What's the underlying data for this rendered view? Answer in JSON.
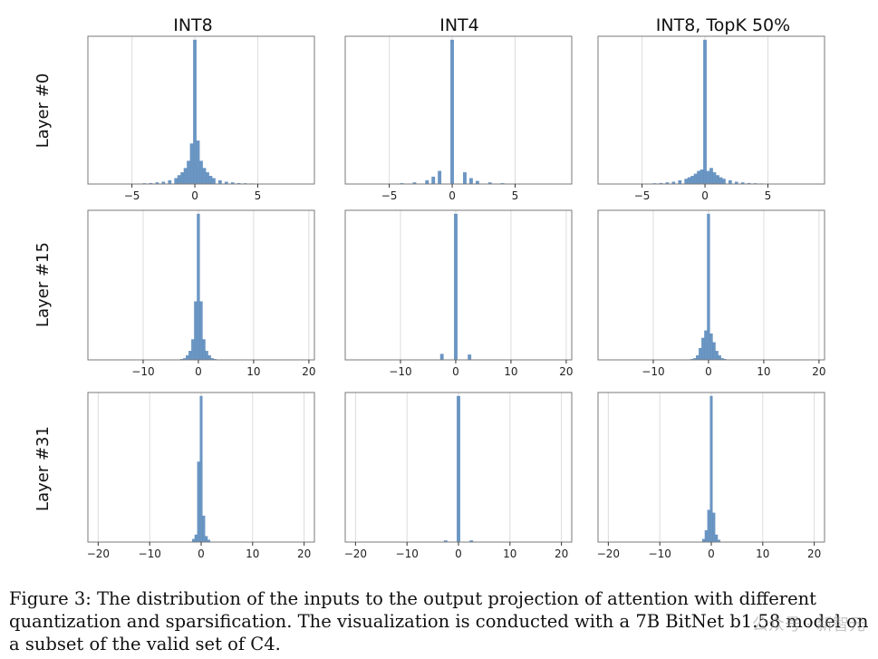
{
  "figure": {
    "caption": "Figure 3: The distribution of the inputs to the output projection of attention with different quantization and sparsification. The visualization is conducted with a 7B BitNet b1.58 model on a subset of the valid set of C4.",
    "watermark": "公众号 · 新智元",
    "bar_color": "#6a96c4",
    "columns": [
      "INT8",
      "INT4",
      "INT8, TopK 50%"
    ],
    "rows": [
      "Layer #0",
      "Layer #15",
      "Layer #31"
    ]
  },
  "chart_data": [
    {
      "type": "bar",
      "panel": "Layer #0 / INT8",
      "title": "INT8",
      "ylabel": "Layer #0",
      "xlim": [
        -8.5,
        9.5
      ],
      "xticks": [
        -5,
        0,
        5
      ],
      "xtick_labels": [
        "−5",
        "0",
        "5"
      ],
      "grid": true,
      "x": [
        -4.5,
        -4,
        -3.5,
        -3,
        -2.5,
        -2,
        -1.5,
        -1.25,
        -1,
        -0.75,
        -0.5,
        -0.25,
        0,
        0.25,
        0.5,
        0.75,
        1,
        1.25,
        1.5,
        2,
        2.5,
        3,
        3.5,
        4,
        4.5,
        5,
        6
      ],
      "values": [
        0.2,
        0.4,
        0.6,
        1,
        1.5,
        2.5,
        4,
        6,
        8,
        11,
        16,
        28,
        100,
        30,
        16,
        11,
        8,
        5.5,
        4,
        2.5,
        1.5,
        1,
        0.6,
        0.4,
        0.3,
        0.2,
        0.1
      ]
    },
    {
      "type": "bar",
      "panel": "Layer #0 / INT4",
      "title": "INT4",
      "xlim": [
        -8.5,
        9.5
      ],
      "xticks": [
        -5,
        0,
        5
      ],
      "xtick_labels": [
        "−5",
        "0",
        "5"
      ],
      "grid": true,
      "x": [
        -4,
        -3,
        -2,
        -1.5,
        -1,
        0,
        1,
        1.5,
        2,
        3,
        4
      ],
      "values": [
        0.5,
        1,
        2.5,
        5,
        9,
        100,
        8,
        4,
        2,
        1,
        0.5
      ]
    },
    {
      "type": "bar",
      "panel": "Layer #0 / INT8, TopK 50%",
      "title": "INT8, TopK 50%",
      "xlim": [
        -8.5,
        9.5
      ],
      "xticks": [
        -5,
        0,
        5
      ],
      "xtick_labels": [
        "−5",
        "0",
        "5"
      ],
      "grid": true,
      "x": [
        -4.5,
        -4,
        -3.5,
        -3,
        -2.5,
        -2,
        -1.5,
        -1.25,
        -1,
        -0.75,
        -0.5,
        -0.25,
        0,
        0.25,
        0.5,
        0.75,
        1,
        1.25,
        1.5,
        2,
        2.5,
        3,
        3.5,
        4,
        4.5,
        5,
        6
      ],
      "values": [
        0.2,
        0.4,
        0.6,
        1,
        1.5,
        2.5,
        3.5,
        4.5,
        5.5,
        7,
        9,
        10,
        100,
        9,
        11,
        8,
        6,
        4.5,
        3.5,
        2.5,
        1.5,
        1,
        0.6,
        0.4,
        0.3,
        0.2,
        0.1
      ]
    },
    {
      "type": "bar",
      "panel": "Layer #15 / INT8",
      "ylabel": "Layer #15",
      "xlim": [
        -20,
        21
      ],
      "xticks": [
        -10,
        0,
        10,
        20
      ],
      "xtick_labels": [
        "−10",
        "0",
        "10",
        "20"
      ],
      "grid": true,
      "x": [
        -3,
        -2.5,
        -2,
        -1.5,
        -1,
        -0.5,
        0,
        0.5,
        1,
        1.5,
        2,
        2.5,
        3
      ],
      "values": [
        0.5,
        1,
        3,
        6,
        14,
        40,
        100,
        40,
        14,
        6,
        3,
        1,
        0.5
      ]
    },
    {
      "type": "bar",
      "panel": "Layer #15 / INT4",
      "xlim": [
        -20,
        21
      ],
      "xticks": [
        -10,
        0,
        10,
        20
      ],
      "xtick_labels": [
        "−10",
        "0",
        "10",
        "20"
      ],
      "grid": true,
      "x": [
        -2.5,
        0,
        2.5
      ],
      "values": [
        4,
        100,
        3.5
      ]
    },
    {
      "type": "bar",
      "panel": "Layer #15 / INT8, TopK 50%",
      "xlim": [
        -20,
        21
      ],
      "xticks": [
        -10,
        0,
        10,
        20
      ],
      "xtick_labels": [
        "−10",
        "0",
        "10",
        "20"
      ],
      "grid": true,
      "x": [
        -3,
        -2.5,
        -2,
        -1.5,
        -1,
        -0.5,
        0,
        0.5,
        1,
        1.5,
        2,
        2.5,
        3
      ],
      "values": [
        0.5,
        1,
        3,
        8,
        15,
        20,
        100,
        18,
        12,
        6,
        3,
        1,
        0.5
      ]
    },
    {
      "type": "bar",
      "panel": "Layer #31 / INT8",
      "ylabel": "Layer #31",
      "xlim": [
        -22,
        22
      ],
      "xticks": [
        -20,
        -10,
        0,
        10,
        20
      ],
      "xtick_labels": [
        "−20",
        "−10",
        "0",
        "10",
        "20"
      ],
      "grid": true,
      "x": [
        -1.5,
        -1,
        -0.5,
        0,
        0.5,
        1,
        1.5
      ],
      "values": [
        2,
        5,
        55,
        100,
        18,
        4,
        1.5
      ]
    },
    {
      "type": "bar",
      "panel": "Layer #31 / INT4",
      "xlim": [
        -22,
        22
      ],
      "xticks": [
        -20,
        -10,
        0,
        10,
        20
      ],
      "xtick_labels": [
        "−20",
        "−10",
        "0",
        "10",
        "20"
      ],
      "grid": true,
      "x": [
        -2.5,
        0,
        2.5
      ],
      "values": [
        1,
        100,
        1
      ]
    },
    {
      "type": "bar",
      "panel": "Layer #31 / INT8, TopK 50%",
      "xlim": [
        -22,
        22
      ],
      "xticks": [
        -20,
        -10,
        0,
        10,
        20
      ],
      "xtick_labels": [
        "−20",
        "−10",
        "0",
        "10",
        "20"
      ],
      "grid": true,
      "x": [
        -1.5,
        -1,
        -0.5,
        0,
        0.5,
        1,
        1.5
      ],
      "values": [
        2,
        8,
        22,
        100,
        20,
        5,
        1.5
      ]
    }
  ]
}
